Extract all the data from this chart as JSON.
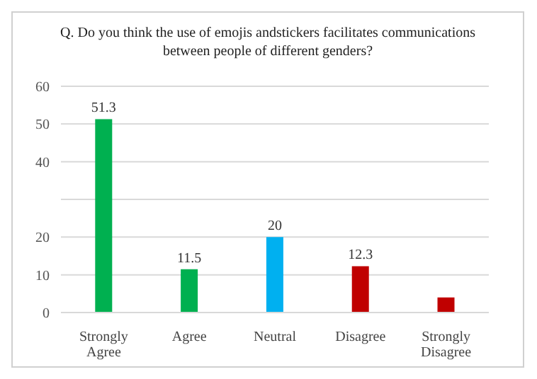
{
  "chart_data": {
    "type": "bar",
    "title": "Q. Do you think the use of emojis andstickers facilitates communications between people of different genders?",
    "categories": [
      "Strongly Agree",
      "Agree",
      "Neutral",
      "Disagree",
      "Strongly Disagree"
    ],
    "values": [
      51.3,
      11.5,
      20,
      12.3,
      4
    ],
    "colors": [
      "#00b050",
      "#00b050",
      "#00b0f0",
      "#c00000",
      "#c00000"
    ],
    "value_labels": [
      "51.3",
      "11.5",
      "20",
      "12.3",
      null
    ],
    "ylim": [
      0,
      60
    ],
    "yticks": [
      0,
      10,
      20,
      {
        "value": 30,
        "label": null
      },
      40,
      50,
      60
    ],
    "grid": "y"
  }
}
